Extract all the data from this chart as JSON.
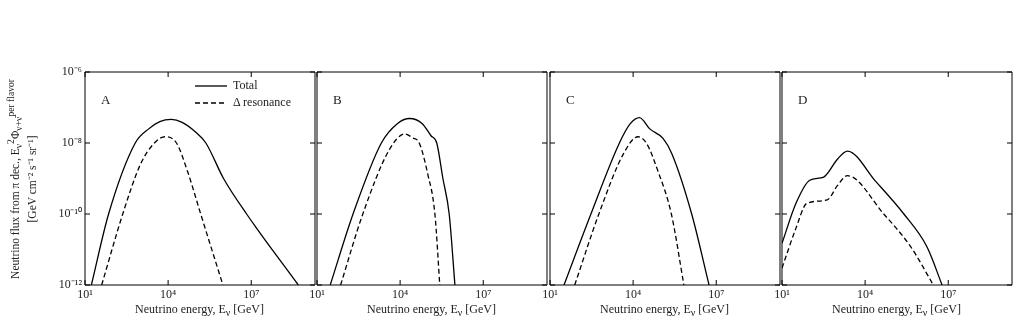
{
  "chart_data": [
    {
      "type": "line",
      "ylabel": "Neutrino flux from π dec., E$_{ν}$$^{2}$Φ$_{ν+ν̄}$$^{per flavor}$ [GeV cm⁻² s⁻¹ sr⁻¹]",
      "xlabel": "Neutrino energy, E$_{ν}$ [GeV]",
      "annotations": [
        "A"
      ],
      "log": "xy",
      "legend": "top right",
      "xlim": [
        10,
        2000000000.0
      ],
      "xticks": [
        {
          "value": 10,
          "label": "10¹"
        },
        {
          "value": 10000,
          "label": "10⁴"
        },
        {
          "value": 10000000,
          "label": "10⁷"
        }
      ],
      "ylim": [
        1e-12,
        1e-06
      ],
      "yticks": [
        {
          "value": 1e-12,
          "label": "10⁻¹²"
        },
        {
          "value": 1e-10,
          "label": "10⁻¹⁰"
        },
        {
          "value": 1e-08,
          "label": "10⁻⁸"
        },
        {
          "value": 1e-06,
          "label": "10⁻⁶"
        }
      ],
      "series": [
        {
          "name": "Total",
          "color": "#000000",
          "line_style": "solid",
          "x": [
            17,
            71,
            650,
            2000,
            5000,
            13000,
            32000,
            100000,
            230000,
            1000000,
            6800000,
            500000000
          ],
          "values": [
            1e-12,
            1e-10,
            1e-08,
            2.5e-08,
            4e-08,
            4.6e-08,
            3.8e-08,
            2e-08,
            1e-08,
            1e-09,
            1e-10,
            1e-12
          ]
        },
        {
          "name": "Δ resonance",
          "color": "#000000",
          "line_style": "dashed",
          "x": [
            40,
            230,
            1000,
            3200,
            7800,
            20000,
            50000,
            150000,
            950000
          ],
          "values": [
            1e-12,
            1e-10,
            2.5e-09,
            1e-08,
            1.5e-08,
            1e-08,
            1.6e-09,
            1e-10,
            1e-12
          ]
        }
      ]
    },
    {
      "type": "line",
      "xlabel": "Neutrino energy, E$_{ν}$ [GeV]",
      "annotations": [
        "B"
      ],
      "log": "xy",
      "tick_labels": "x",
      "xlim": [
        10,
        2000000000.0
      ],
      "xticks": [
        {
          "value": 10,
          "label": "10¹"
        },
        {
          "value": 10000,
          "label": "10⁴"
        },
        {
          "value": 10000000,
          "label": "10⁷"
        }
      ],
      "ylim": [
        1e-12,
        1e-06
      ],
      "yticks": [
        {
          "value": 1e-12,
          "label": null
        },
        {
          "value": 1e-10,
          "label": null
        },
        {
          "value": 1e-08,
          "label": null
        },
        {
          "value": 1e-06,
          "label": null
        }
      ],
      "series": [
        {
          "color": "#000000",
          "line_style": "solid",
          "x": [
            30,
            200,
            2100,
            7900,
            22000,
            63000,
            130000,
            210000,
            350000,
            590000,
            950000
          ],
          "values": [
            1e-12,
            1e-10,
            1e-08,
            3.5e-08,
            4.9e-08,
            3.5e-08,
            1.6e-08,
            1e-08,
            1e-09,
            1e-10,
            1e-12
          ]
        },
        {
          "color": "#000000",
          "line_style": "dashed",
          "x": [
            71,
            450,
            4000,
            15000,
            28000,
            49000,
            100000,
            180000,
            270000
          ],
          "values": [
            1e-12,
            1e-10,
            6.3e-09,
            1.8e-08,
            1.4e-08,
            1e-08,
            1.3e-09,
            1e-10,
            1e-12
          ]
        }
      ]
    },
    {
      "type": "line",
      "xlabel": "Neutrino energy, E$_{ν}$ [GeV]",
      "annotations": [
        "C"
      ],
      "log": "xy",
      "tick_labels": "x",
      "xlim": [
        10,
        2000000000.0
      ],
      "xticks": [
        {
          "value": 10,
          "label": "10¹"
        },
        {
          "value": 10000,
          "label": "10⁴"
        },
        {
          "value": 10000000,
          "label": "10⁷"
        }
      ],
      "ylim": [
        1e-12,
        1e-06
      ],
      "yticks": [
        {
          "value": 1e-12,
          "label": null
        },
        {
          "value": 1e-10,
          "label": null
        },
        {
          "value": 1e-08,
          "label": null
        },
        {
          "value": 1e-06,
          "label": null
        }
      ],
      "series": [
        {
          "color": "#000000",
          "line_style": "solid",
          "x": [
            32,
            300,
            3200,
            7900,
            17000,
            40000,
            120000,
            250000,
            1300000,
            5500000
          ],
          "values": [
            1e-12,
            1e-10,
            1e-08,
            3.5e-08,
            5.2e-08,
            2.5e-08,
            1.35e-08,
            5e-09,
            1e-10,
            1e-12
          ]
        },
        {
          "color": "#000000",
          "line_style": "dashed",
          "x": [
            78,
            580,
            4500,
            15000,
            30000,
            79000,
            240000,
            680000
          ],
          "values": [
            1e-12,
            1e-10,
            5e-09,
            1.5e-08,
            1e-08,
            1.6e-09,
            1e-10,
            1e-12
          ]
        }
      ]
    },
    {
      "type": "line",
      "xlabel": "Neutrino energy, E$_{ν}$ [GeV]",
      "annotations": [
        "D"
      ],
      "log": "xy",
      "tick_labels": "x",
      "xlim": [
        10,
        2000000000.0
      ],
      "xticks": [
        {
          "value": 10,
          "label": "10¹"
        },
        {
          "value": 10000,
          "label": "10⁴"
        },
        {
          "value": 10000000,
          "label": "10⁷"
        }
      ],
      "ylim": [
        1e-12,
        1e-06
      ],
      "yticks": [
        {
          "value": 1e-12,
          "label": null
        },
        {
          "value": 1e-10,
          "label": null
        },
        {
          "value": 1e-08,
          "label": null
        },
        {
          "value": 1e-06,
          "label": null
        }
      ],
      "series": [
        {
          "color": "#000000",
          "line_style": "solid",
          "x": [
            10,
            32,
            100,
            320,
            1000,
            2300,
            25000,
            250000,
            1700000,
            6000000
          ],
          "values": [
            1.5e-11,
            2e-10,
            8.9e-10,
            1.1e-09,
            3.5e-09,
            5.9e-09,
            8e-10,
            1e-10,
            1.2e-11,
            1e-12
          ]
        },
        {
          "color": "#000000",
          "line_style": "dashed",
          "x": [
            10,
            32,
            79,
            430,
            1000,
            2300,
            47000,
            440000,
            2900000
          ],
          "values": [
            3e-12,
            4e-11,
            2e-10,
            2.5e-10,
            6.3e-10,
            1.2e-09,
            1e-10,
            1.2e-11,
            1e-12
          ]
        }
      ]
    }
  ]
}
